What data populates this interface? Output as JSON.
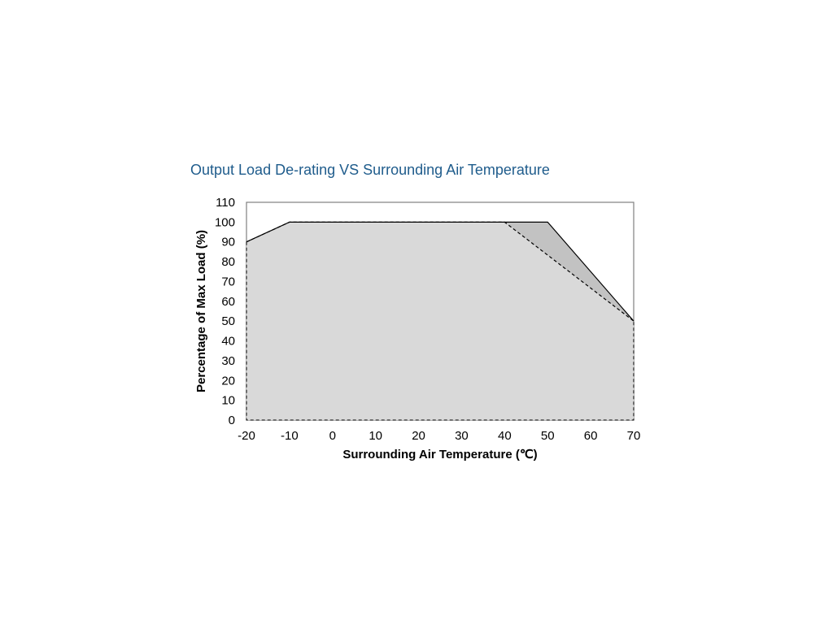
{
  "chart_data": {
    "type": "area",
    "title": "Output Load De-rating VS Surrounding Air Temperature",
    "xlabel": "Surrounding Air Temperature (℃)",
    "ylabel": "Percentage of Max Load (%)",
    "xlim": [
      -20,
      70
    ],
    "ylim": [
      0,
      110
    ],
    "x_ticks": [
      "-20",
      "-10",
      "0",
      "10",
      "20",
      "30",
      "40",
      "50",
      "60",
      "70"
    ],
    "y_ticks": [
      "0",
      "10",
      "20",
      "30",
      "40",
      "50",
      "60",
      "70",
      "80",
      "90",
      "100",
      "110"
    ],
    "grid": false,
    "legend": "none",
    "series": [
      {
        "style": "solid",
        "fill": "#c2c2c2",
        "points": [
          [
            -20,
            90
          ],
          [
            -10,
            100
          ],
          [
            50,
            100
          ],
          [
            70,
            50
          ]
        ]
      },
      {
        "style": "dashed",
        "fill": "#d9d9d9",
        "points": [
          [
            -20,
            90
          ],
          [
            -10,
            100
          ],
          [
            40,
            100
          ],
          [
            70,
            50
          ]
        ]
      }
    ]
  }
}
